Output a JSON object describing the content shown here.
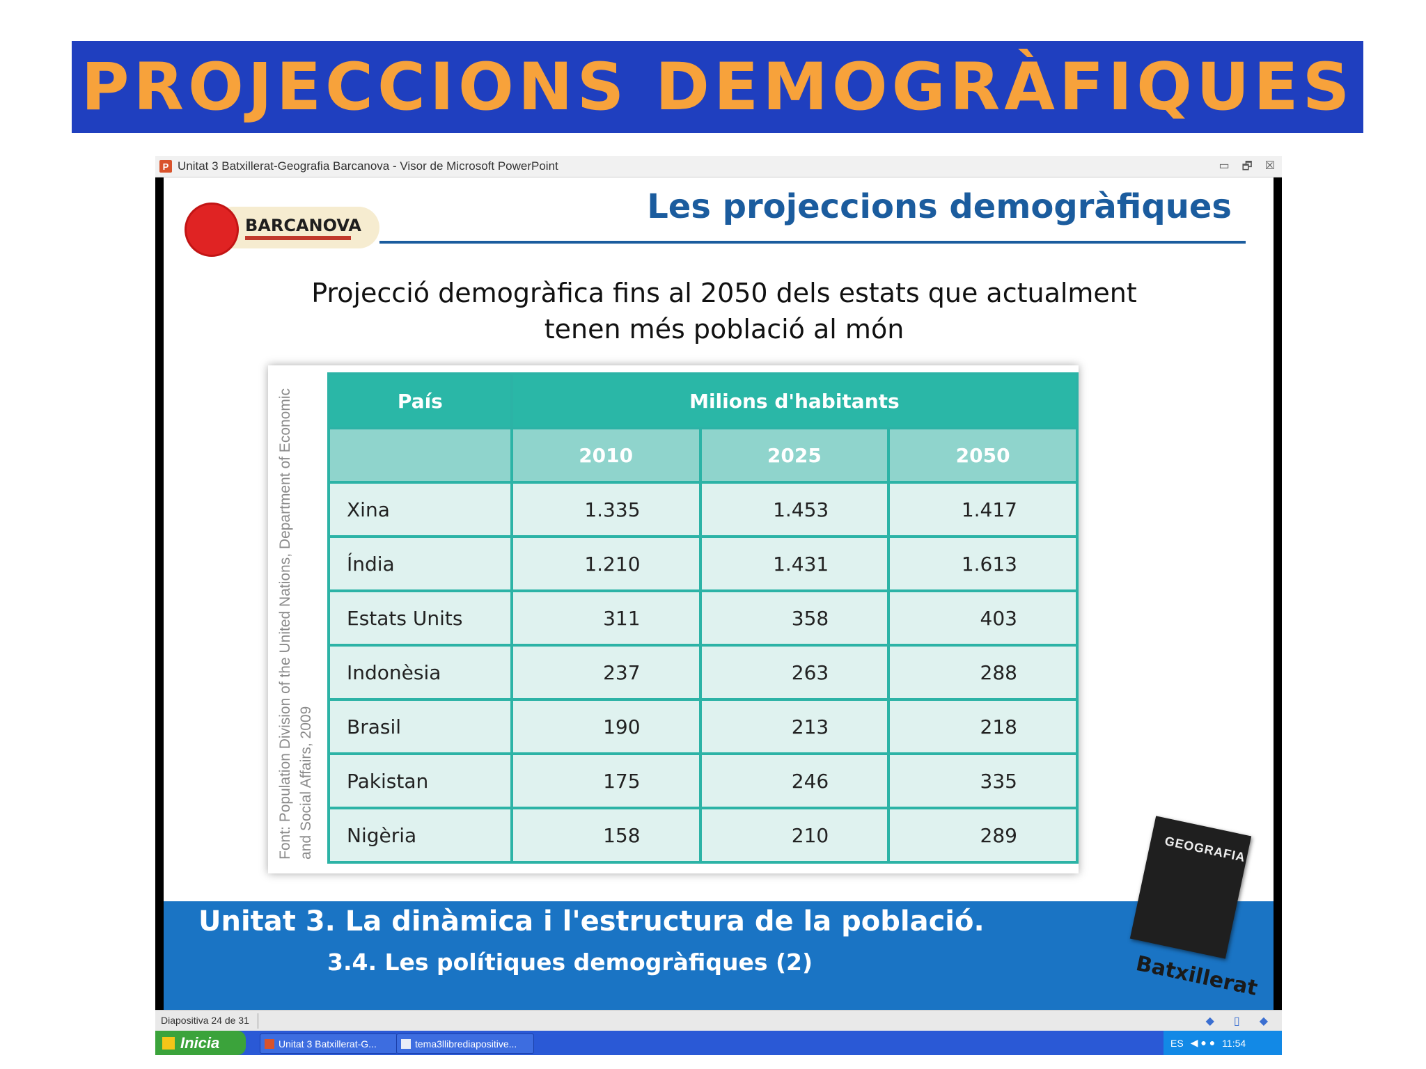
{
  "banner": {
    "title": "PROJECCIONS DEMOGRÀFIQUES"
  },
  "window": {
    "title": "Unitat 3 Batxillerat-Geografia Barcanova - Visor de Microsoft PowerPoint",
    "controls": {
      "minimize": "▭",
      "restore": "🗗",
      "close": "☒"
    }
  },
  "slide": {
    "logo": {
      "text": "BARCANOVA"
    },
    "title": "Les projeccions demogràfiques",
    "subtitle_line1": "Projecció demogràfica fins al 2050 dels estats que actualment",
    "subtitle_line2": "tenen més població al món",
    "source": "Font: Population Division of the United Nations, Department of Economic and Social Affairs, 2009",
    "table": {
      "col_country": "País",
      "col_group": "Milions d'habitants",
      "years": [
        "2010",
        "2025",
        "2050"
      ],
      "rows": [
        {
          "country": "Xina",
          "v2010": "1.335",
          "v2025": "1.453",
          "v2050": "1.417"
        },
        {
          "country": "Índia",
          "v2010": "1.210",
          "v2025": "1.431",
          "v2050": "1.613"
        },
        {
          "country": "Estats Units",
          "v2010": "311",
          "v2025": "358",
          "v2050": "403"
        },
        {
          "country": "Indonèsia",
          "v2010": "237",
          "v2025": "263",
          "v2050": "288"
        },
        {
          "country": "Brasil",
          "v2010": "190",
          "v2025": "213",
          "v2050": "218"
        },
        {
          "country": "Pakistan",
          "v2010": "175",
          "v2025": "246",
          "v2050": "335"
        },
        {
          "country": "Nigèria",
          "v2010": "158",
          "v2025": "210",
          "v2050": "289"
        }
      ]
    },
    "footer": {
      "unit": "Unitat 3. La dinàmica i l'estructura de la població.",
      "section": "3.4. Les polítiques demogràfiques (2)"
    },
    "book": {
      "title": "GEOGRAFIA",
      "tag": "Batxillerat"
    }
  },
  "statusbar": {
    "text": "Diapositiva 24 de 31"
  },
  "taskbar": {
    "start": "Inicia",
    "tasks": [
      "Unitat 3 Batxillerat-G...",
      "tema3llibrediapositive..."
    ],
    "lang": "ES",
    "time": "11:54"
  },
  "colors": {
    "banner": "#1f3fbf",
    "banner_text": "#f7a23b",
    "table_header": "#2ab7a7",
    "footer": "#1a74c4"
  }
}
